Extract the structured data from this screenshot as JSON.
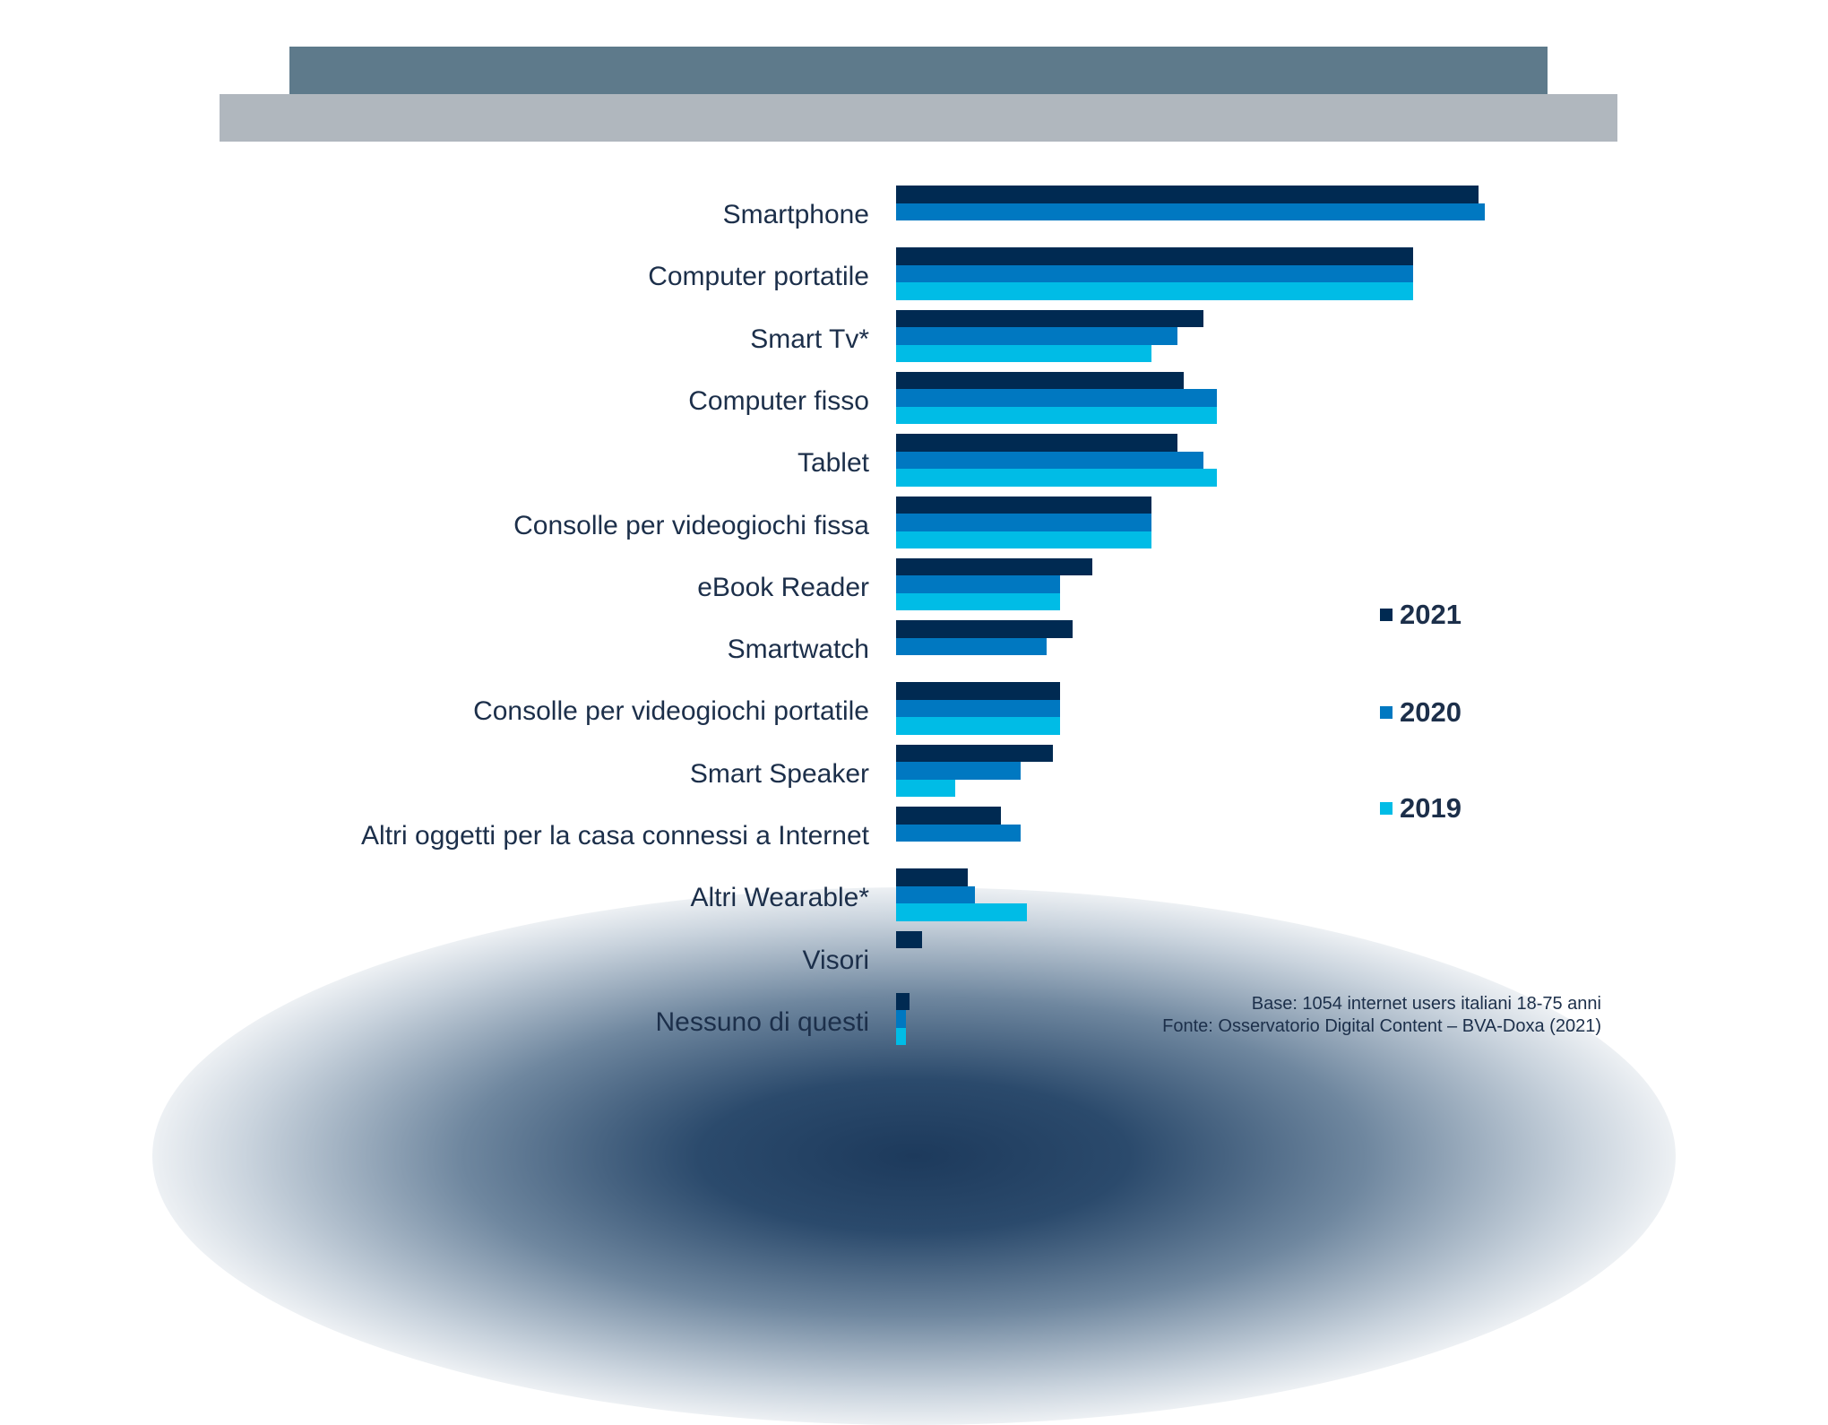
{
  "colors": {
    "2021": "#002a52",
    "2020": "#0078c1",
    "2019": "#00bce6"
  },
  "chart_data": {
    "type": "bar",
    "orientation": "horizontal",
    "title": "",
    "xlabel": "",
    "ylabel": "",
    "units": "% (estimated from bar lengths; no values printed)",
    "xlim": [
      0,
      100
    ],
    "grid": false,
    "legend_position": "right",
    "categories": [
      "Smartphone",
      "Computer portatile",
      "Smart Tv*",
      "Computer fisso",
      "Tablet",
      "Consolle per videogiochi fissa",
      "eBook Reader",
      "Smartwatch",
      "Consolle per videogiochi portatile",
      "Smart Speaker",
      "Altri oggetti per la casa connessi a Internet",
      "Altri Wearable*",
      "Visori",
      "Nessuno di questi"
    ],
    "series": [
      {
        "name": "2021",
        "values": [
          89,
          79,
          47,
          44,
          43,
          39,
          30,
          27,
          25,
          24,
          16,
          11,
          4,
          2
        ]
      },
      {
        "name": "2020",
        "values": [
          90,
          79,
          43,
          49,
          47,
          39,
          25,
          23,
          25,
          19,
          19,
          12,
          null,
          1.5
        ]
      },
      {
        "name": "2019",
        "values": [
          null,
          79,
          39,
          49,
          49,
          39,
          25,
          null,
          25,
          9,
          null,
          20,
          null,
          1.5
        ]
      }
    ]
  },
  "footer": {
    "base": "Base: 1054 internet users italiani 18-75 anni",
    "source": "Fonte: Osservatorio Digital Content – BVA-Doxa (2021)"
  }
}
